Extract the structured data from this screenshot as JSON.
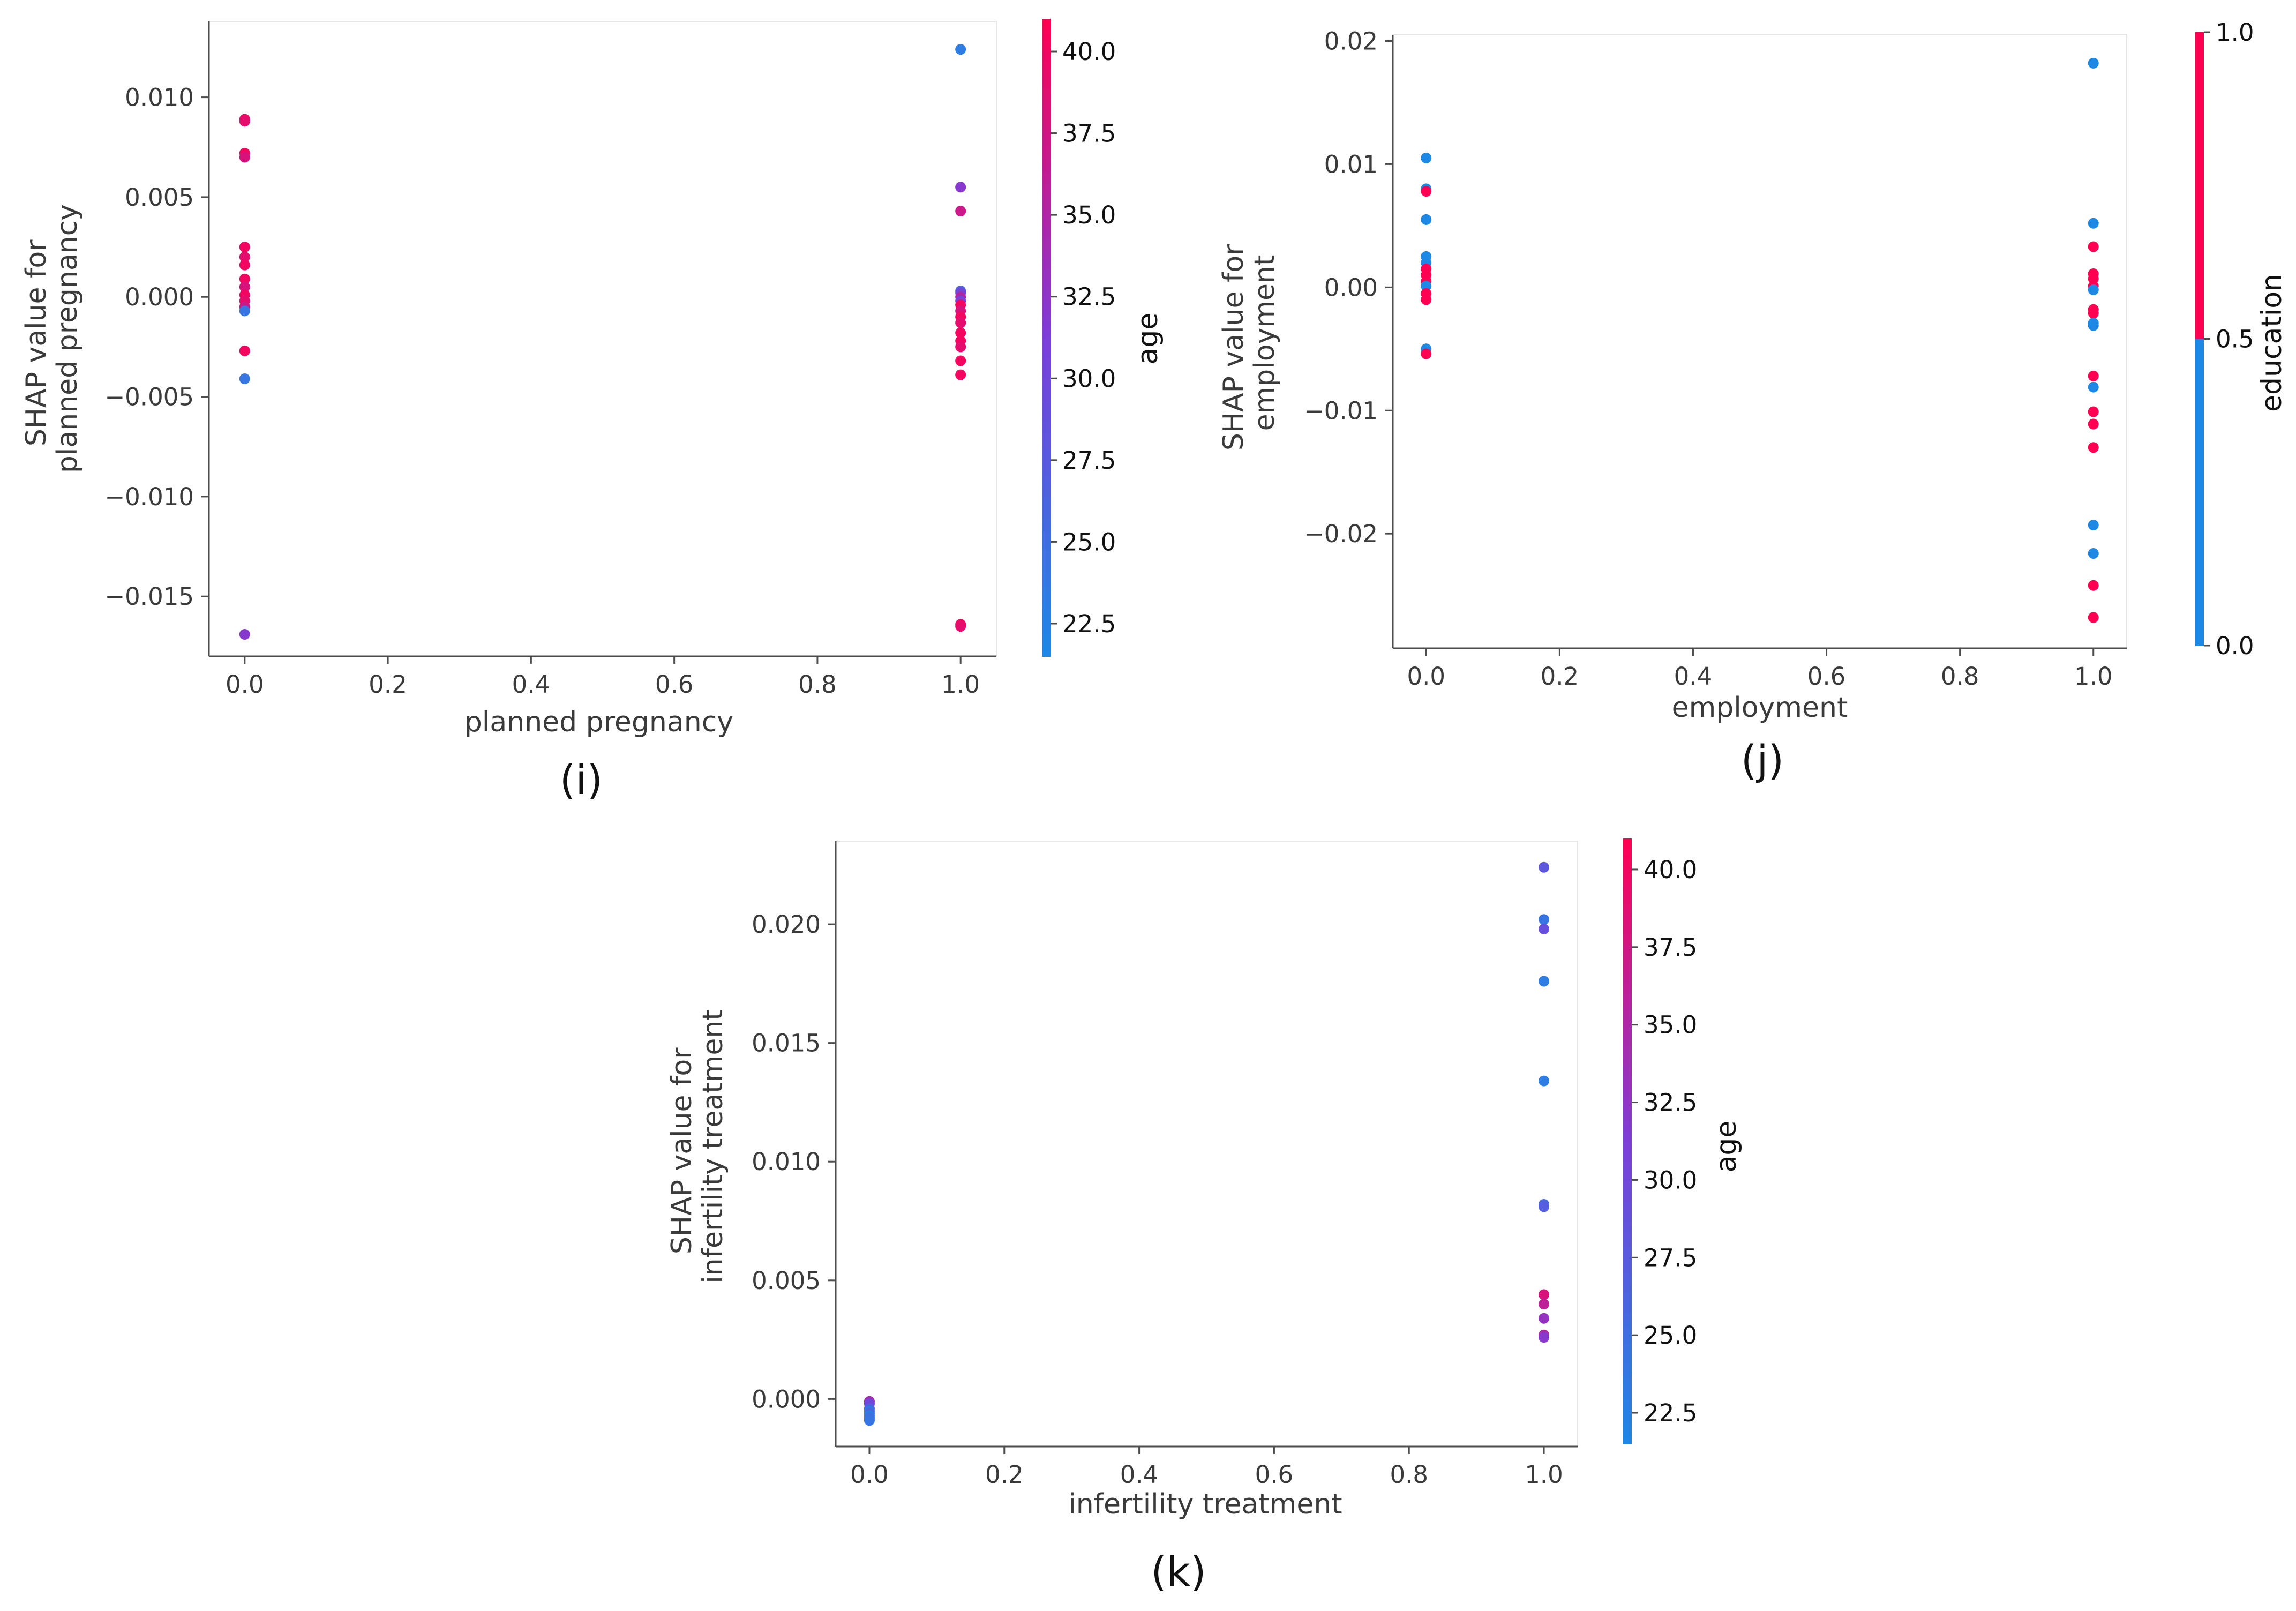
{
  "figure": {
    "captions": [
      "(i)",
      "(j)",
      "(k)"
    ]
  },
  "chart_data": [
    {
      "type": "scatter",
      "panel": "(i)",
      "xlabel": "planned pregnancy",
      "ylabel": "SHAP value for planned pregnancy",
      "ylabel_lines": [
        "SHAP value for",
        "planned pregnancy"
      ],
      "xlim": [
        -0.05,
        1.05
      ],
      "ylim": [
        -0.018,
        0.0138
      ],
      "xticks": [
        0.0,
        0.2,
        0.4,
        0.6,
        0.8,
        1.0
      ],
      "xtick_labels": [
        "0.0",
        "0.2",
        "0.4",
        "0.6",
        "0.8",
        "1.0"
      ],
      "yticks": [
        -0.015,
        -0.01,
        -0.005,
        0.0,
        0.005,
        0.01
      ],
      "ytick_labels": [
        "−0.015",
        "−0.010",
        "−0.005",
        "0.000",
        "0.005",
        "0.010"
      ],
      "colorbar": {
        "label": "age",
        "range": [
          21.5,
          41.0
        ],
        "ticks": [
          22.5,
          25.0,
          27.5,
          30.0,
          32.5,
          35.0,
          37.5,
          40.0
        ],
        "tick_labels": [
          "22.5",
          "25.0",
          "27.5",
          "30.0",
          "32.5",
          "35.0",
          "37.5",
          "40.0"
        ],
        "colors": [
          "#1e88e5",
          "#7d3ed8",
          "#ff0052"
        ]
      },
      "points": [
        {
          "x": 0,
          "y": 0.0089,
          "c": 40
        },
        {
          "x": 0,
          "y": 0.0088,
          "c": 39
        },
        {
          "x": 0,
          "y": 0.0072,
          "c": 40
        },
        {
          "x": 0,
          "y": 0.007,
          "c": 38
        },
        {
          "x": 0,
          "y": 0.0025,
          "c": 40
        },
        {
          "x": 0,
          "y": 0.002,
          "c": 39
        },
        {
          "x": 0,
          "y": 0.0016,
          "c": 40
        },
        {
          "x": 0,
          "y": 0.0009,
          "c": 40
        },
        {
          "x": 0,
          "y": 0.0005,
          "c": 38
        },
        {
          "x": 0,
          "y": 0.0001,
          "c": 40
        },
        {
          "x": 0,
          "y": -0.0002,
          "c": 39
        },
        {
          "x": 0,
          "y": -0.0005,
          "c": 37
        },
        {
          "x": 0,
          "y": -0.0007,
          "c": 24
        },
        {
          "x": 0,
          "y": -0.0027,
          "c": 40
        },
        {
          "x": 0,
          "y": -0.0041,
          "c": 24
        },
        {
          "x": 0,
          "y": -0.0169,
          "c": 32
        },
        {
          "x": 1,
          "y": 0.0124,
          "c": 23
        },
        {
          "x": 1,
          "y": 0.0055,
          "c": 32
        },
        {
          "x": 1,
          "y": 0.0043,
          "c": 37
        },
        {
          "x": 1,
          "y": 0.0003,
          "c": 27
        },
        {
          "x": 1,
          "y": 0.0002,
          "c": 30
        },
        {
          "x": 1,
          "y": 0.0,
          "c": 35
        },
        {
          "x": 1,
          "y": -0.0002,
          "c": 31
        },
        {
          "x": 1,
          "y": -0.0004,
          "c": 40
        },
        {
          "x": 1,
          "y": -0.0007,
          "c": 38
        },
        {
          "x": 1,
          "y": -0.001,
          "c": 40
        },
        {
          "x": 1,
          "y": -0.0013,
          "c": 39
        },
        {
          "x": 1,
          "y": -0.0018,
          "c": 40
        },
        {
          "x": 1,
          "y": -0.0022,
          "c": 40
        },
        {
          "x": 1,
          "y": -0.0025,
          "c": 39
        },
        {
          "x": 1,
          "y": -0.0032,
          "c": 40
        },
        {
          "x": 1,
          "y": -0.0039,
          "c": 40
        },
        {
          "x": 1,
          "y": -0.0164,
          "c": 40
        },
        {
          "x": 1,
          "y": -0.0165,
          "c": 39
        }
      ]
    },
    {
      "type": "scatter",
      "panel": "(j)",
      "xlabel": "employment",
      "ylabel": "SHAP value for employment",
      "ylabel_lines": [
        "SHAP value for",
        "employment"
      ],
      "xlim": [
        -0.05,
        1.05
      ],
      "ylim": [
        -0.0293,
        0.0205
      ],
      "xticks": [
        0.0,
        0.2,
        0.4,
        0.6,
        0.8,
        1.0
      ],
      "xtick_labels": [
        "0.0",
        "0.2",
        "0.4",
        "0.6",
        "0.8",
        "1.0"
      ],
      "yticks": [
        -0.02,
        -0.01,
        0.0,
        0.01,
        0.02
      ],
      "ytick_labels": [
        "−0.02",
        "−0.01",
        "0.00",
        "0.01",
        "0.02"
      ],
      "colorbar": {
        "label": "education",
        "range": [
          0.0,
          1.0
        ],
        "ticks": [
          0.0,
          0.5,
          1.0
        ],
        "tick_labels": [
          "0.0",
          "0.5",
          "1.0"
        ],
        "colors": [
          "#1e88e5",
          "#1e88e5",
          "#ff0052",
          "#ff0052"
        ],
        "discrete": true
      },
      "points": [
        {
          "x": 0,
          "y": 0.0105,
          "c": 0
        },
        {
          "x": 0,
          "y": 0.008,
          "c": 0
        },
        {
          "x": 0,
          "y": 0.0078,
          "c": 1
        },
        {
          "x": 0,
          "y": 0.0055,
          "c": 0
        },
        {
          "x": 0,
          "y": 0.0025,
          "c": 0
        },
        {
          "x": 0,
          "y": 0.002,
          "c": 0
        },
        {
          "x": 0,
          "y": 0.0015,
          "c": 1
        },
        {
          "x": 0,
          "y": 0.001,
          "c": 1
        },
        {
          "x": 0,
          "y": 0.0005,
          "c": 1
        },
        {
          "x": 0,
          "y": 0.0001,
          "c": 0
        },
        {
          "x": 0,
          "y": -0.0005,
          "c": 1
        },
        {
          "x": 0,
          "y": -0.001,
          "c": 1
        },
        {
          "x": 0,
          "y": -0.005,
          "c": 0
        },
        {
          "x": 0,
          "y": -0.0054,
          "c": 1
        },
        {
          "x": 1,
          "y": 0.0182,
          "c": 0
        },
        {
          "x": 1,
          "y": 0.0052,
          "c": 0
        },
        {
          "x": 1,
          "y": 0.0033,
          "c": 1
        },
        {
          "x": 1,
          "y": 0.0011,
          "c": 1
        },
        {
          "x": 1,
          "y": 0.0007,
          "c": 1
        },
        {
          "x": 1,
          "y": 0.0001,
          "c": 1
        },
        {
          "x": 1,
          "y": -0.0002,
          "c": 0
        },
        {
          "x": 1,
          "y": -0.0018,
          "c": 1
        },
        {
          "x": 1,
          "y": -0.0021,
          "c": 1
        },
        {
          "x": 1,
          "y": -0.0029,
          "c": 0
        },
        {
          "x": 1,
          "y": -0.0031,
          "c": 0
        },
        {
          "x": 1,
          "y": -0.0072,
          "c": 1
        },
        {
          "x": 1,
          "y": -0.0081,
          "c": 0
        },
        {
          "x": 1,
          "y": -0.0101,
          "c": 1
        },
        {
          "x": 1,
          "y": -0.0111,
          "c": 1
        },
        {
          "x": 1,
          "y": -0.013,
          "c": 1
        },
        {
          "x": 1,
          "y": -0.0193,
          "c": 0
        },
        {
          "x": 1,
          "y": -0.0216,
          "c": 0
        },
        {
          "x": 1,
          "y": -0.0242,
          "c": 1
        },
        {
          "x": 1,
          "y": -0.0268,
          "c": 1
        }
      ]
    },
    {
      "type": "scatter",
      "panel": "(k)",
      "xlabel": "infertility treatment",
      "ylabel": "SHAP value for infertility treatment",
      "ylabel_lines": [
        "SHAP value for",
        "infertility treatment"
      ],
      "xlim": [
        -0.05,
        1.05
      ],
      "ylim": [
        -0.002,
        0.0235
      ],
      "xticks": [
        0.0,
        0.2,
        0.4,
        0.6,
        0.8,
        1.0
      ],
      "xtick_labels": [
        "0.0",
        "0.2",
        "0.4",
        "0.6",
        "0.8",
        "1.0"
      ],
      "yticks": [
        0.0,
        0.005,
        0.01,
        0.015,
        0.02
      ],
      "ytick_labels": [
        "0.000",
        "0.005",
        "0.010",
        "0.015",
        "0.020"
      ],
      "colorbar": {
        "label": "age",
        "range": [
          21.5,
          41.0
        ],
        "ticks": [
          22.5,
          25.0,
          27.5,
          30.0,
          32.5,
          35.0,
          37.5,
          40.0
        ],
        "tick_labels": [
          "22.5",
          "25.0",
          "27.5",
          "30.0",
          "32.5",
          "35.0",
          "37.5",
          "40.0"
        ],
        "colors": [
          "#1e88e5",
          "#7d3ed8",
          "#ff0052"
        ]
      },
      "points": [
        {
          "x": 0,
          "y": -0.0001,
          "c": 34
        },
        {
          "x": 0,
          "y": -0.0002,
          "c": 30
        },
        {
          "x": 0,
          "y": -0.0004,
          "c": 27
        },
        {
          "x": 0,
          "y": -0.0005,
          "c": 24
        },
        {
          "x": 0,
          "y": -0.0006,
          "c": 26
        },
        {
          "x": 0,
          "y": -0.0007,
          "c": 23
        },
        {
          "x": 0,
          "y": -0.0008,
          "c": 25
        },
        {
          "x": 0,
          "y": -0.0009,
          "c": 24
        },
        {
          "x": 1,
          "y": 0.0224,
          "c": 28
        },
        {
          "x": 1,
          "y": 0.0202,
          "c": 24
        },
        {
          "x": 1,
          "y": 0.0198,
          "c": 29
        },
        {
          "x": 1,
          "y": 0.0176,
          "c": 23
        },
        {
          "x": 1,
          "y": 0.0134,
          "c": 23
        },
        {
          "x": 1,
          "y": 0.0082,
          "c": 26
        },
        {
          "x": 1,
          "y": 0.0081,
          "c": 27
        },
        {
          "x": 1,
          "y": 0.0044,
          "c": 38
        },
        {
          "x": 1,
          "y": 0.004,
          "c": 36
        },
        {
          "x": 1,
          "y": 0.0034,
          "c": 33
        },
        {
          "x": 1,
          "y": 0.0027,
          "c": 35
        },
        {
          "x": 1,
          "y": 0.0026,
          "c": 32
        }
      ]
    }
  ]
}
